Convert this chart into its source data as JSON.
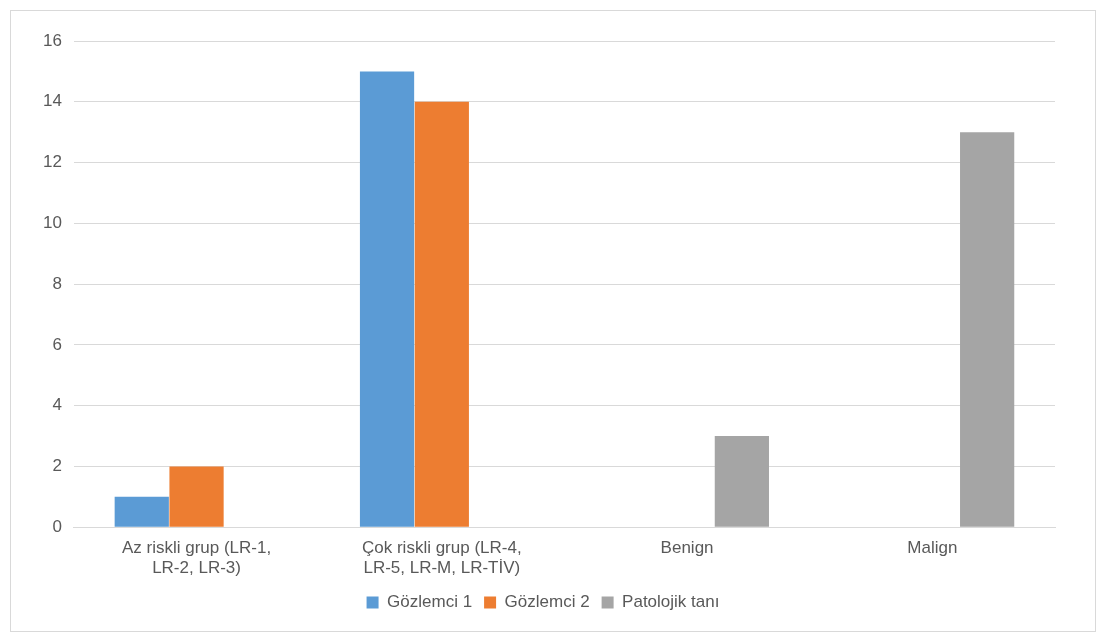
{
  "chart_data": {
    "type": "bar",
    "categories": [
      "Az riskli grup (LR-1, LR-2, LR-3)",
      "Çok riskli grup (LR-4, LR-5, LR-M, LR-TİV)",
      "Benign",
      "Malign"
    ],
    "series": [
      {
        "name": "Gözlemci 1",
        "color": "#5b9bd5",
        "values": [
          1,
          15,
          null,
          null
        ]
      },
      {
        "name": "Gözlemci 2",
        "color": "#ed7d31",
        "values": [
          2,
          14,
          null,
          null
        ]
      },
      {
        "name": "Patolojik tanı",
        "color": "#a5a5a5",
        "values": [
          null,
          null,
          3,
          13
        ]
      }
    ],
    "ylim": [
      0,
      16
    ],
    "yticks": [
      0,
      2,
      4,
      6,
      8,
      10,
      12,
      14,
      16
    ],
    "grid": "y",
    "legend": "bottom"
  }
}
